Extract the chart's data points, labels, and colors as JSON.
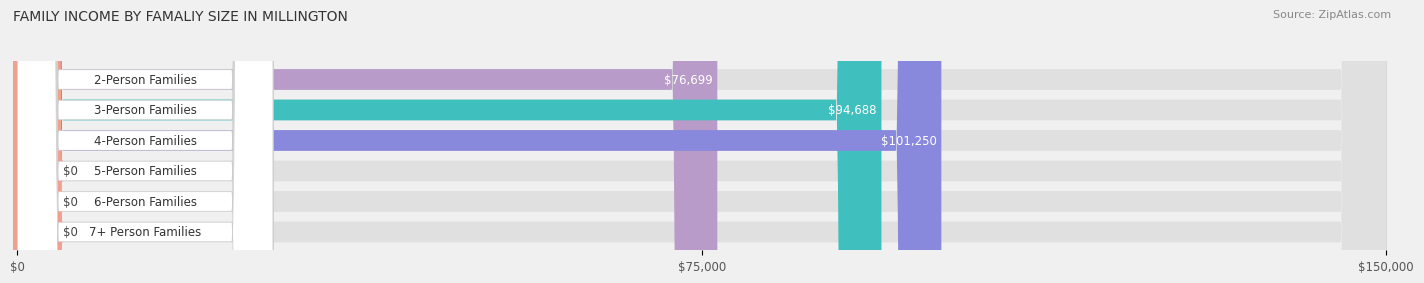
{
  "title": "FAMILY INCOME BY FAMALIY SIZE IN MILLINGTON",
  "source": "Source: ZipAtlas.com",
  "categories": [
    "2-Person Families",
    "3-Person Families",
    "4-Person Families",
    "5-Person Families",
    "6-Person Families",
    "7+ Person Families"
  ],
  "values": [
    76699,
    94688,
    101250,
    0,
    0,
    0
  ],
  "bar_colors": [
    "#b89bc8",
    "#40bfbf",
    "#8888dd",
    "#f07878",
    "#f5c080",
    "#f0a090"
  ],
  "value_labels": [
    "$76,699",
    "$94,688",
    "$101,250",
    "$0",
    "$0",
    "$0"
  ],
  "xlim_max": 150000,
  "xticks": [
    0,
    75000,
    150000
  ],
  "xtick_labels": [
    "$0",
    "$75,000",
    "$150,000"
  ],
  "background_color": "#f0f0f0",
  "bar_background_color": "#e0e0e0",
  "title_fontsize": 10,
  "source_fontsize": 8,
  "label_fontsize": 8.5,
  "value_fontsize": 8.5,
  "zero_stub": 3500
}
